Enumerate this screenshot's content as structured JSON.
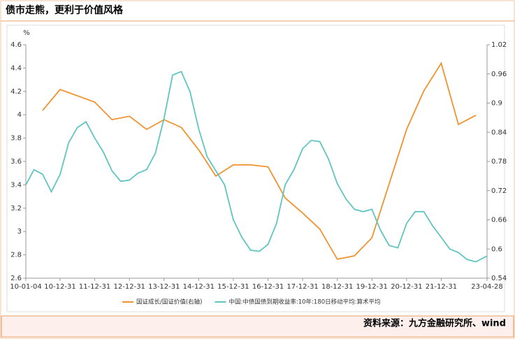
{
  "chart_data": {
    "type": "line",
    "title": "债市走熊，更利于价值风格",
    "ylabel": "%",
    "source": "资料来源：九方金融研究所、wind",
    "xlim": [
      "10-01-04",
      "23-04-28"
    ],
    "xticks": [
      "10-01-04",
      "10-12-31",
      "11-12-31",
      "12-12-31",
      "13-12-31",
      "14-12-31",
      "15-12-31",
      "16-12-31",
      "17-12-31",
      "18-12-31",
      "19-12-31",
      "20-12-31",
      "21-12-31",
      "23-04-28"
    ],
    "ylim": [
      2.6,
      4.6
    ],
    "yticks": [
      2.6,
      2.8,
      3,
      3.2,
      3.4,
      3.6,
      3.8,
      4,
      4.2,
      4.4,
      4.6
    ],
    "y2lim": [
      0.54,
      1.02
    ],
    "y2ticks": [
      0.54,
      0.6,
      0.66,
      0.72,
      0.78,
      0.84,
      0.9,
      0.96,
      1.02
    ],
    "grid": false,
    "series": [
      {
        "name": "国证成长/国证价值(右轴)",
        "color": "#f0922e",
        "axis": "y2",
        "x": [
          "10-06-30",
          "10-12-31",
          "11-12-31",
          "12-06-30",
          "12-12-31",
          "13-06-30",
          "13-12-31",
          "14-06-30",
          "14-12-31",
          "15-06-30",
          "15-12-31",
          "16-06-30",
          "16-12-31",
          "17-06-30",
          "17-12-31",
          "18-06-30",
          "18-12-31",
          "19-06-30",
          "19-12-31",
          "20-06-30",
          "20-12-31",
          "21-06-30",
          "21-12-31",
          "22-06-30",
          "22-12-31"
        ],
        "values": [
          0.885,
          0.928,
          0.902,
          0.866,
          0.873,
          0.846,
          0.866,
          0.85,
          0.804,
          0.75,
          0.773,
          0.773,
          0.769,
          0.705,
          0.674,
          0.641,
          0.579,
          0.586,
          0.623,
          0.734,
          0.846,
          0.925,
          0.982,
          0.856,
          0.875
        ]
      },
      {
        "name": "中国:中债国债到期收益率:10年:180日移动平均:算术平均",
        "color": "#5fc4c4",
        "x": [
          "10-01-04",
          "10-03-31",
          "10-06-30",
          "10-09-30",
          "10-12-31",
          "11-03-31",
          "11-06-30",
          "11-09-30",
          "11-12-31",
          "12-03-31",
          "12-06-30",
          "12-09-30",
          "12-12-31",
          "13-03-31",
          "13-06-30",
          "13-09-30",
          "13-12-31",
          "14-03-31",
          "14-06-30",
          "14-09-30",
          "14-12-31",
          "15-03-31",
          "15-06-30",
          "15-09-30",
          "15-12-31",
          "16-03-31",
          "16-06-30",
          "16-09-30",
          "16-12-31",
          "17-03-31",
          "17-06-30",
          "17-09-30",
          "17-12-31",
          "18-03-31",
          "18-06-30",
          "18-09-30",
          "18-12-31",
          "19-03-31",
          "19-06-30",
          "19-09-30",
          "19-12-31",
          "20-03-31",
          "20-06-30",
          "20-09-30",
          "20-12-31",
          "21-03-31",
          "21-06-30",
          "21-09-30",
          "21-12-31",
          "22-03-31",
          "22-06-30",
          "22-09-30",
          "22-12-31",
          "23-04-28"
        ],
        "values": [
          3.4,
          3.53,
          3.49,
          3.34,
          3.49,
          3.76,
          3.89,
          3.94,
          3.8,
          3.68,
          3.52,
          3.43,
          3.44,
          3.5,
          3.53,
          3.67,
          3.97,
          4.34,
          4.37,
          4.2,
          3.88,
          3.64,
          3.52,
          3.4,
          3.1,
          2.95,
          2.84,
          2.83,
          2.89,
          3.07,
          3.4,
          3.53,
          3.71,
          3.78,
          3.77,
          3.62,
          3.41,
          3.28,
          3.19,
          3.17,
          3.19,
          3.01,
          2.88,
          2.86,
          3.07,
          3.17,
          3.17,
          3.05,
          2.95,
          2.85,
          2.82,
          2.76,
          2.74,
          2.79
        ]
      }
    ]
  }
}
